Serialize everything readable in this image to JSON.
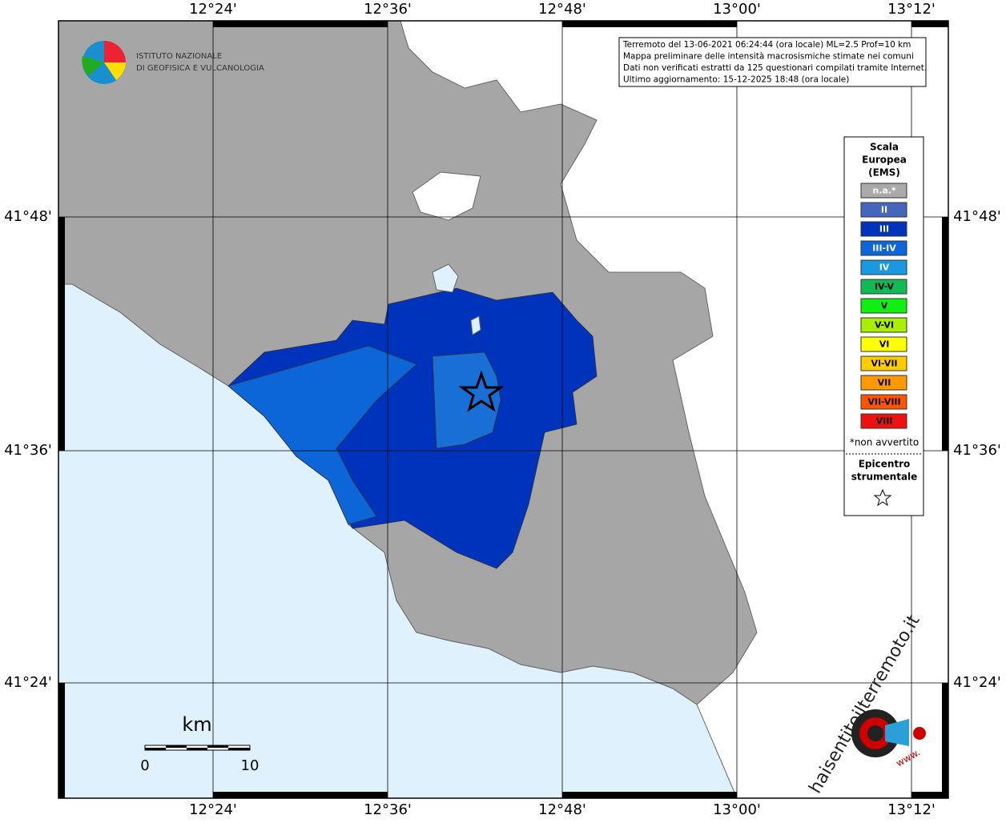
{
  "map": {
    "lon_labels": [
      "12°24'",
      "12°36'",
      "12°48'",
      "13°00'",
      "13°12'"
    ],
    "lat_labels": [
      "41°48'",
      "41°36'",
      "41°24'"
    ],
    "institute": [
      "ISTITUTO NAZIONALE",
      "DI GEOFISICA E VULCANOLOGIA"
    ],
    "info": [
      "Terremoto del 13-06-2021 06:24:44 (ora locale) ML=2.5 Prof=10 km",
      "Mappa preliminare delle intensità macrosismiche stimate nei comuni",
      "Dati non verificati estratti da 125 questionari compilati tramite Internet.",
      "Ultimo aggiornamento: 15-12-2025 18:48 (ora locale)"
    ],
    "legend": {
      "title": [
        "Scala",
        "Europea",
        "(EMS)"
      ],
      "items": [
        {
          "label": "n.a.*",
          "color": "#aaaaaa"
        },
        {
          "label": "II",
          "color": "#4466bb"
        },
        {
          "label": "III",
          "color": "#0033bb"
        },
        {
          "label": "III-IV",
          "color": "#0c66d8"
        },
        {
          "label": "IV",
          "color": "#1a99e0"
        },
        {
          "label": "IV-V",
          "color": "#10bb55"
        },
        {
          "label": "V",
          "color": "#11ee11"
        },
        {
          "label": "V-VI",
          "color": "#aaee00"
        },
        {
          "label": "VI",
          "color": "#ffff00"
        },
        {
          "label": "VI-VII",
          "color": "#ffcc00"
        },
        {
          "label": "VII",
          "color": "#ff9900"
        },
        {
          "label": "VII-VIII",
          "color": "#ff5500"
        },
        {
          "label": "VIII",
          "color": "#ee1111"
        }
      ],
      "note": "*non avvertito",
      "epicenter": [
        "Epicentro",
        "strumentale"
      ]
    },
    "scale": {
      "unit": "km",
      "labels": [
        "0",
        "10"
      ]
    },
    "site": {
      "name": "haisentitoilterremoto.it",
      "www": "www."
    }
  }
}
